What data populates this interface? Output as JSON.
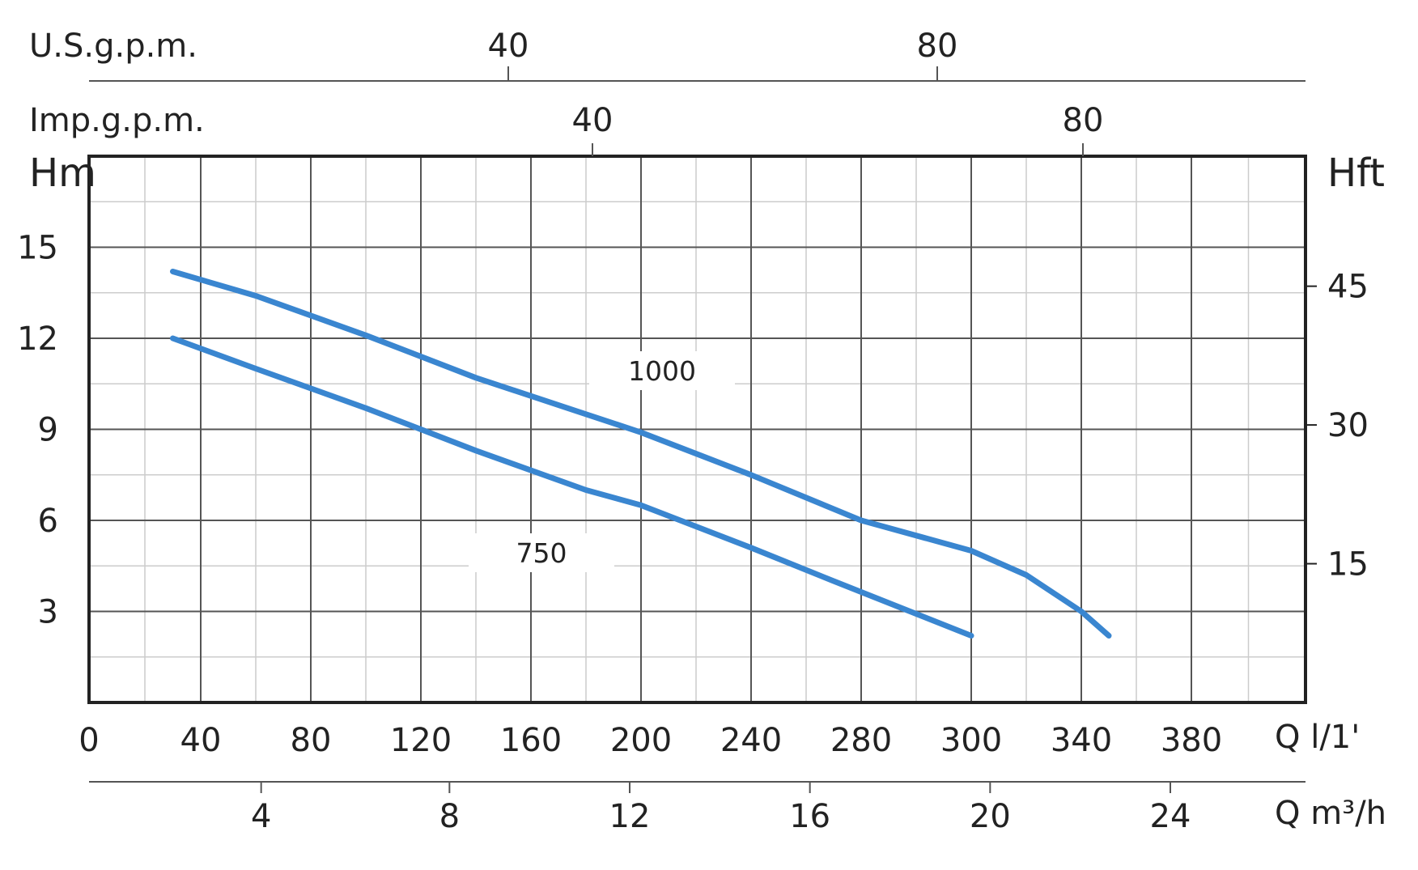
{
  "chart_data": {
    "type": "line",
    "title": "",
    "xlabel": "Q l/1'",
    "ylabel": "Hm",
    "xlim": [
      0,
      420
    ],
    "ylim": [
      0,
      18
    ],
    "grid": true,
    "x_ticks": [
      0,
      40,
      80,
      120,
      160,
      200,
      240,
      280,
      300,
      340,
      380
    ],
    "y_ticks": [
      3,
      6,
      9,
      12,
      15
    ],
    "series": [
      {
        "name": "1000",
        "color": "#3a86d0",
        "x": [
          30,
          60,
          100,
          140,
          180,
          200,
          240,
          280,
          300,
          320,
          340,
          350
        ],
        "y": [
          14.2,
          13.4,
          12.1,
          10.7,
          9.5,
          8.9,
          7.5,
          6.0,
          5.0,
          4.2,
          3.0,
          2.2
        ]
      },
      {
        "name": "750",
        "color": "#3a86d0",
        "x": [
          30,
          60,
          100,
          140,
          180,
          200,
          240,
          270,
          300
        ],
        "y": [
          12.0,
          11.0,
          9.7,
          8.3,
          7.0,
          6.5,
          5.1,
          4.0,
          2.2
        ]
      }
    ],
    "axes": {
      "us_gpm": {
        "label": "U.S.g.p.m.",
        "ticks": [
          40,
          80
        ]
      },
      "imp_gpm": {
        "label": "Imp.g.p.m.",
        "ticks": [
          40,
          80
        ]
      },
      "hft": {
        "label": "Hft",
        "ticks": [
          15,
          30,
          45
        ]
      },
      "m3h": {
        "label": "Q m³/h",
        "ticks": [
          4,
          8,
          12,
          16,
          20,
          24
        ]
      }
    }
  },
  "colors": {
    "frame": "#222222",
    "major_grid": "#555555",
    "minor_grid": "#cccccc",
    "curve": "#3a86d0"
  }
}
